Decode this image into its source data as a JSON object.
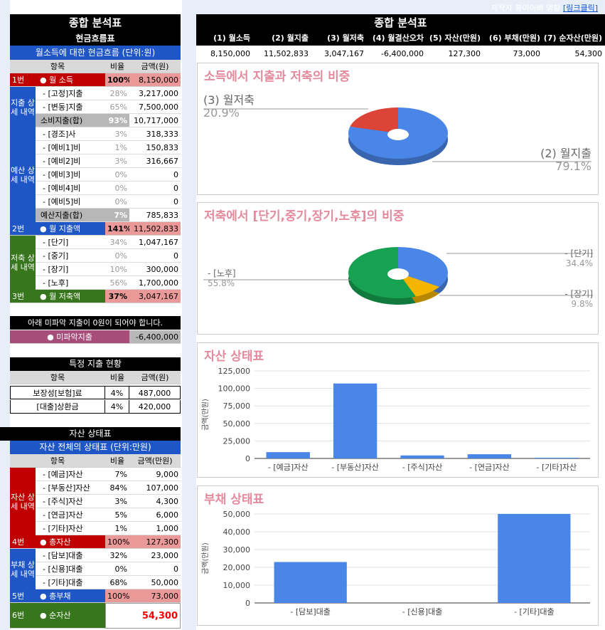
{
  "credit": {
    "text": "제작자 봉이아빠 명함",
    "link": "[링크클릭]"
  },
  "left": {
    "title": "종합 분석표",
    "subtitle": "현금흐름표",
    "cashflow_header": "월소득에 대한 현금흐름 (단위:원)",
    "columns": [
      "항목",
      "비율",
      "금액(원)"
    ],
    "income": {
      "num": "1번",
      "label": "● 월 소득",
      "pct": "100%",
      "amt": "8,150,000"
    },
    "spend_group": "지출 상세 내역",
    "spend_items": [
      {
        "name": "- [고정]지출",
        "pct": "28%",
        "amt": "3,217,000"
      },
      {
        "name": "- [변동]지출",
        "pct": "65%",
        "amt": "7,500,000"
      }
    ],
    "spend_sum": {
      "name": "소비지출(합)",
      "pct": "93%",
      "amt": "10,717,000"
    },
    "budget_group": "예산 상세 내역",
    "budget_items": [
      {
        "name": "- [경조]사",
        "pct": "3%",
        "amt": "318,333"
      },
      {
        "name": "- [예비1]비",
        "pct": "1%",
        "amt": "150,833"
      },
      {
        "name": "- [예비2]비",
        "pct": "3%",
        "amt": "316,667"
      },
      {
        "name": "- [예비3]비",
        "pct": "0%",
        "amt": "0"
      },
      {
        "name": "- [예비4]비",
        "pct": "0%",
        "amt": "0"
      },
      {
        "name": "- [예비5]비",
        "pct": "0%",
        "amt": "0"
      }
    ],
    "budget_sum": {
      "name": "예산지출(합)",
      "pct": "7%",
      "amt": "785,833"
    },
    "spend_total": {
      "num": "2번",
      "label": "● 월 지출액",
      "pct": "141%",
      "amt": "11,502,833"
    },
    "save_group": "저축 상세 내역",
    "save_items": [
      {
        "name": "- [단기]",
        "pct": "34%",
        "amt": "1,047,167"
      },
      {
        "name": "- [중기]",
        "pct": "0%",
        "amt": "0"
      },
      {
        "name": "- [장기]",
        "pct": "10%",
        "amt": "300,000"
      },
      {
        "name": "- [노후]",
        "pct": "56%",
        "amt": "1,700,000"
      }
    ],
    "save_total": {
      "num": "3번",
      "label": "● 월 저축액",
      "pct": "37%",
      "amt": "3,047,167"
    },
    "warning": "아래 미파악 지출이 0원이 되어야 합니다.",
    "unknown": {
      "label": "● 미파악지출",
      "amt": "-6,400,000"
    },
    "special_title": "특정 지출 현황",
    "special_columns": [
      "항목",
      "비율",
      "금액(원)"
    ],
    "special_rows": [
      {
        "name": "보장성[보험]료",
        "pct": "4%",
        "amt": "487,000"
      },
      {
        "name": "[대출]상환금",
        "pct": "4%",
        "amt": "420,000"
      }
    ],
    "asset_title": "자산 상태표",
    "asset_header": "자산 전체의 상태표  (단위:만원)",
    "asset_columns": [
      "항목",
      "비율",
      "금액(만원)"
    ],
    "asset_group": "자산 상세 내역",
    "asset_items": [
      {
        "name": "- [예금]자산",
        "pct": "7%",
        "amt": "9,000"
      },
      {
        "name": "- [부동산]자산",
        "pct": "84%",
        "amt": "107,000"
      },
      {
        "name": "- [주식]자산",
        "pct": "3%",
        "amt": "4,300"
      },
      {
        "name": "- [연금]자산",
        "pct": "5%",
        "amt": "6,000"
      },
      {
        "name": "- [기타]자산",
        "pct": "1%",
        "amt": "1,000"
      }
    ],
    "asset_total": {
      "num": "4번",
      "label": "● 총자산",
      "pct": "100%",
      "amt": "127,300"
    },
    "debt_group": "부채 상세 내역",
    "debt_items": [
      {
        "name": "- [담보]대출",
        "pct": "32%",
        "amt": "23,000"
      },
      {
        "name": "- [신용]대출",
        "pct": "0%",
        "amt": "0"
      },
      {
        "name": "- [기타]대출",
        "pct": "68%",
        "amt": "50,000"
      }
    ],
    "debt_total": {
      "num": "5번",
      "label": "● 총부채",
      "pct": "100%",
      "amt": "73,000"
    },
    "net": {
      "num": "6번",
      "label": "● 순자산",
      "amt": "54,300"
    }
  },
  "right": {
    "title": "종합 분석표",
    "summary_labels": [
      "(1) 월소득",
      "(2) 월지출",
      "(3) 월저축",
      "(4) 월결산오차",
      "(5) 자산(만원)",
      "(6) 부채(만원)",
      "(7) 순자산(만원)"
    ],
    "summary_values": [
      "8,150,000",
      "11,502,833",
      "3,047,167",
      "-6,400,000",
      "127,300",
      "73,000",
      "54,300"
    ]
  },
  "colors": {
    "black": "#000000",
    "blue": "#1f56c6",
    "red": "#c00000",
    "green": "#38761d",
    "pink": "#ea9999",
    "purple": "#a64d79",
    "grey": "#b7b7b7",
    "chart_blue": "#4a86e8",
    "chart_red": "#db4437",
    "chart_green": "#17a251",
    "chart_yellow": "#f4b400",
    "chart_title": "#e38b9c"
  },
  "chart_data": [
    {
      "type": "pie",
      "title": "소득에서 지출과 저축의 비중",
      "labels": [
        "(2) 월지출",
        "(3) 월저축"
      ],
      "values": [
        79.1,
        20.9
      ],
      "value_labels": [
        "79.1%",
        "20.9%"
      ],
      "colors": [
        "#4a86e8",
        "#db4437"
      ]
    },
    {
      "type": "pie",
      "title": "저축에서 [단기,중기,장기,노후]의 비중",
      "labels": [
        "- [단기]",
        "- [장기]",
        "- [노후]"
      ],
      "values": [
        34.4,
        9.8,
        55.8
      ],
      "value_labels": [
        "34.4%",
        "9.8%",
        "55.8%"
      ],
      "colors": [
        "#4a86e8",
        "#f4b400",
        "#17a251"
      ]
    },
    {
      "type": "bar",
      "title": "자산 상태표",
      "ylabel": "금액(만원)",
      "categories": [
        "- [예금]자산",
        "- [부동산]자산",
        "- [주식]자산",
        "- [연금]자산",
        "- [기타]자산"
      ],
      "values": [
        9000,
        107000,
        4300,
        6000,
        1000
      ],
      "ylim": [
        0,
        125000
      ],
      "ticks": [
        0,
        25000,
        50000,
        75000,
        100000,
        125000
      ],
      "tick_labels": [
        "0",
        "25,000",
        "50,000",
        "75,000",
        "100,000",
        "125,000"
      ],
      "color": "#4a86e8"
    },
    {
      "type": "bar",
      "title": "부채 상태표",
      "ylabel": "금액(만원)",
      "categories": [
        "- [담보]대출",
        "- [신용]대출",
        "- [기타]대출"
      ],
      "values": [
        23000,
        0,
        50000
      ],
      "ylim": [
        0,
        50000
      ],
      "ticks": [
        0,
        10000,
        20000,
        30000,
        40000,
        50000
      ],
      "tick_labels": [
        "0",
        "10,000",
        "20,000",
        "30,000",
        "40,000",
        "50,000"
      ],
      "color": "#4a86e8"
    }
  ]
}
